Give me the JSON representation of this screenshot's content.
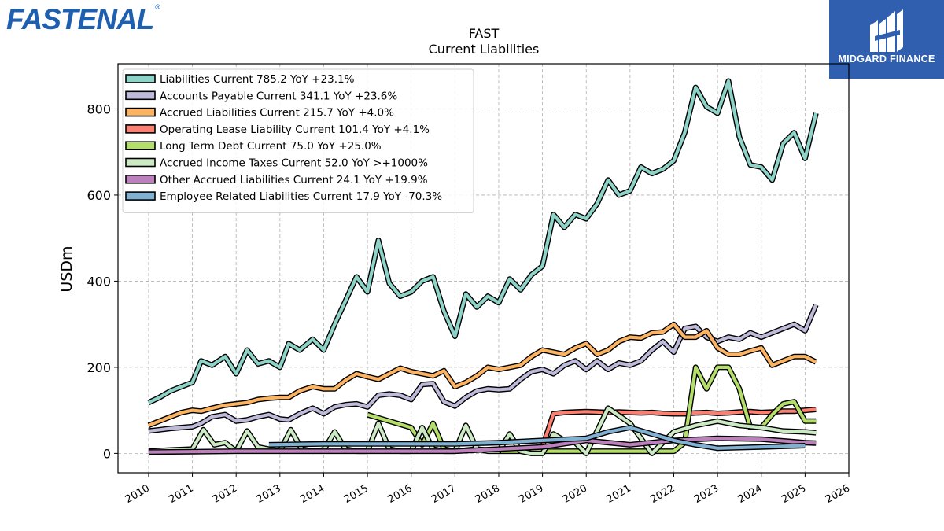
{
  "brand": {
    "name": "FASTENAL",
    "registered": "®"
  },
  "partner": {
    "name": "MIDGARD FINANCE"
  },
  "chart_data": {
    "type": "line",
    "title": "FAST",
    "subtitle": "Current  Liabilities",
    "ylabel": "USDm",
    "xlim": [
      2009.3,
      2026.0
    ],
    "ylim": [
      -45,
      905
    ],
    "yticks": [
      0,
      200,
      400,
      600,
      800
    ],
    "xticks": [
      "2010",
      "2011",
      "2012",
      "2013",
      "2014",
      "2015",
      "2016",
      "2017",
      "2018",
      "2019",
      "2020",
      "2021",
      "2022",
      "2023",
      "2024",
      "2025",
      "2026"
    ],
    "grid": true,
    "legend_position": "top-left",
    "series": [
      {
        "name": "Liabilities Current  785.2 YoY +23.1%",
        "color": "#8dd3c7",
        "x": [
          2010.0,
          2010.25,
          2010.5,
          2010.75,
          2011.0,
          2011.2,
          2011.45,
          2011.75,
          2012.0,
          2012.25,
          2012.5,
          2012.75,
          2013.0,
          2013.2,
          2013.45,
          2013.75,
          2014.0,
          2014.25,
          2014.5,
          2014.75,
          2015.0,
          2015.25,
          2015.5,
          2015.75,
          2016.0,
          2016.25,
          2016.5,
          2016.75,
          2017.0,
          2017.25,
          2017.5,
          2017.75,
          2018.0,
          2018.25,
          2018.5,
          2018.75,
          2019.0,
          2019.25,
          2019.5,
          2019.75,
          2020.0,
          2020.25,
          2020.5,
          2020.75,
          2021.0,
          2021.25,
          2021.5,
          2021.75,
          2022.0,
          2022.25,
          2022.5,
          2022.75,
          2023.0,
          2023.25,
          2023.5,
          2023.75,
          2024.0,
          2024.25,
          2024.5,
          2024.75,
          2025.0,
          2025.25
        ],
        "y": [
          118,
          130,
          145,
          155,
          165,
          215,
          205,
          225,
          185,
          240,
          208,
          215,
          200,
          255,
          240,
          265,
          240,
          300,
          355,
          410,
          375,
          495,
          395,
          365,
          375,
          400,
          410,
          330,
          272,
          370,
          340,
          365,
          350,
          405,
          380,
          415,
          435,
          555,
          525,
          555,
          545,
          580,
          635,
          600,
          610,
          665,
          650,
          660,
          680,
          745,
          850,
          805,
          790,
          865,
          735,
          670,
          665,
          635,
          720,
          745,
          685,
          790
        ]
      },
      {
        "name": "Accounts Payable Current  341.1 YoY +23.6%",
        "color": "#bebada",
        "x": [
          2010.0,
          2010.25,
          2010.5,
          2010.75,
          2011.0,
          2011.2,
          2011.45,
          2011.75,
          2012.0,
          2012.25,
          2012.5,
          2012.75,
          2013.0,
          2013.2,
          2013.45,
          2013.75,
          2014.0,
          2014.25,
          2014.5,
          2014.75,
          2015.0,
          2015.25,
          2015.5,
          2015.75,
          2016.0,
          2016.25,
          2016.5,
          2016.75,
          2017.0,
          2017.25,
          2017.5,
          2017.75,
          2018.0,
          2018.25,
          2018.5,
          2018.75,
          2019.0,
          2019.25,
          2019.5,
          2019.75,
          2020.0,
          2020.25,
          2020.5,
          2020.75,
          2021.0,
          2021.25,
          2021.5,
          2021.75,
          2022.0,
          2022.25,
          2022.5,
          2022.75,
          2023.0,
          2023.25,
          2023.5,
          2023.75,
          2024.0,
          2024.25,
          2024.5,
          2024.75,
          2025.0,
          2025.25
        ],
        "y": [
          52,
          55,
          58,
          60,
          62,
          70,
          85,
          90,
          75,
          78,
          85,
          90,
          80,
          78,
          92,
          105,
          92,
          108,
          113,
          115,
          108,
          135,
          138,
          135,
          125,
          160,
          162,
          120,
          110,
          130,
          145,
          150,
          148,
          150,
          172,
          190,
          195,
          185,
          205,
          215,
          195,
          215,
          195,
          210,
          205,
          215,
          240,
          260,
          235,
          290,
          295,
          270,
          260,
          270,
          265,
          280,
          270,
          280,
          290,
          300,
          285,
          345
        ]
      },
      {
        "name": "Accrued Liabilities Current  215.7 YoY +4.0%",
        "color": "#fdb462",
        "x": [
          2010.0,
          2010.25,
          2010.5,
          2010.75,
          2011.0,
          2011.2,
          2011.45,
          2011.75,
          2012.0,
          2012.25,
          2012.5,
          2012.75,
          2013.0,
          2013.2,
          2013.45,
          2013.75,
          2014.0,
          2014.25,
          2014.5,
          2014.75,
          2015.0,
          2015.25,
          2015.5,
          2015.75,
          2016.0,
          2016.25,
          2016.5,
          2016.75,
          2017.0,
          2017.25,
          2017.5,
          2017.75,
          2018.0,
          2018.25,
          2018.5,
          2018.75,
          2019.0,
          2019.25,
          2019.5,
          2019.75,
          2020.0,
          2020.25,
          2020.5,
          2020.75,
          2021.0,
          2021.25,
          2021.5,
          2021.75,
          2022.0,
          2022.25,
          2022.5,
          2022.75,
          2023.0,
          2023.25,
          2023.5,
          2023.75,
          2024.0,
          2024.25,
          2024.5,
          2024.75,
          2025.0,
          2025.25
        ],
        "y": [
          65,
          75,
          85,
          95,
          100,
          98,
          105,
          112,
          115,
          118,
          125,
          128,
          130,
          130,
          145,
          155,
          150,
          150,
          170,
          185,
          178,
          172,
          185,
          198,
          190,
          185,
          180,
          192,
          155,
          165,
          180,
          200,
          195,
          200,
          205,
          225,
          240,
          235,
          230,
          245,
          255,
          230,
          240,
          260,
          270,
          268,
          280,
          282,
          300,
          270,
          270,
          285,
          245,
          230,
          230,
          238,
          245,
          205,
          215,
          225,
          225,
          212
        ]
      },
      {
        "name": "Operating Lease Liability Current  101.4 YoY +4.1%",
        "color": "#fb8072",
        "x": [
          2019.0,
          2019.25,
          2019.5,
          2019.75,
          2020.0,
          2020.25,
          2020.5,
          2020.75,
          2021.0,
          2021.25,
          2021.5,
          2021.75,
          2022.0,
          2022.25,
          2022.5,
          2022.75,
          2023.0,
          2023.25,
          2023.5,
          2023.75,
          2024.0,
          2024.25,
          2024.5,
          2024.75,
          2025.0,
          2025.25
        ],
        "y": [
          15,
          92,
          95,
          96,
          97,
          96,
          95,
          96,
          95,
          94,
          95,
          93,
          92,
          92,
          94,
          95,
          93,
          94,
          96,
          97,
          95,
          96,
          98,
          98,
          100,
          102
        ]
      },
      {
        "name": "Long Term Debt Current  75.0 YoY +25.0%",
        "color": "#b3de69",
        "x": [
          2015.0,
          2015.5,
          2016.0,
          2016.25,
          2016.5,
          2016.75,
          2017.0,
          2017.5,
          2018.0,
          2018.5,
          2019.0,
          2019.5,
          2020.0,
          2020.5,
          2021.0,
          2021.5,
          2022.0,
          2022.25,
          2022.5,
          2022.75,
          2023.0,
          2023.25,
          2023.5,
          2023.75,
          2024.0,
          2024.25,
          2024.5,
          2024.75,
          2025.0,
          2025.25
        ],
        "y": [
          90,
          75,
          60,
          20,
          70,
          10,
          5,
          10,
          5,
          5,
          5,
          5,
          5,
          5,
          5,
          5,
          5,
          25,
          200,
          150,
          200,
          200,
          150,
          60,
          60,
          90,
          115,
          120,
          75,
          75
        ]
      },
      {
        "name": "Accrued Income Taxes Current  52.0 YoY >+1000%",
        "color": "#ccebc5",
        "x": [
          2010.0,
          2010.5,
          2011.0,
          2011.25,
          2011.5,
          2011.75,
          2012.0,
          2012.25,
          2012.5,
          2012.75,
          2013.0,
          2013.25,
          2013.5,
          2013.75,
          2014.0,
          2014.25,
          2014.5,
          2014.75,
          2015.0,
          2015.25,
          2015.5,
          2015.75,
          2016.0,
          2016.25,
          2016.5,
          2016.75,
          2017.0,
          2017.25,
          2017.5,
          2017.75,
          2018.0,
          2018.25,
          2018.5,
          2018.75,
          2019.0,
          2019.25,
          2019.5,
          2019.75,
          2020.0,
          2020.5,
          2021.0,
          2021.5,
          2022.0,
          2022.5,
          2023.0,
          2023.5,
          2024.0,
          2024.5,
          2025.0,
          2025.25
        ],
        "y": [
          5,
          8,
          10,
          55,
          20,
          25,
          5,
          52,
          15,
          10,
          5,
          55,
          10,
          5,
          8,
          50,
          10,
          5,
          5,
          70,
          10,
          5,
          5,
          60,
          10,
          5,
          5,
          65,
          10,
          5,
          5,
          45,
          5,
          0,
          0,
          45,
          30,
          25,
          0,
          105,
          70,
          0,
          50,
          65,
          75,
          65,
          60,
          52,
          50,
          48
        ]
      },
      {
        "name": "Other Accrued Liabilities Current  24.1 YoY +19.9%",
        "color": "#bc80bd",
        "x": [
          2010.0,
          2011.0,
          2012.0,
          2013.0,
          2014.0,
          2015.0,
          2016.0,
          2017.0,
          2018.0,
          2019.0,
          2020.0,
          2021.0,
          2022.0,
          2023.0,
          2024.0,
          2025.0,
          2025.25
        ],
        "y": [
          3,
          4,
          5,
          5,
          5,
          5,
          5,
          5,
          10,
          15,
          30,
          20,
          30,
          35,
          33,
          25,
          24
        ]
      },
      {
        "name": "Employee Related Liabilities Current  17.9 YoY -70.3%",
        "color": "#80b1d3",
        "x": [
          2012.75,
          2014.0,
          2015.0,
          2016.0,
          2017.0,
          2018.0,
          2019.0,
          2020.0,
          2020.5,
          2021.0,
          2021.5,
          2022.0,
          2022.5,
          2023.0,
          2024.0,
          2025.0
        ],
        "y": [
          20,
          22,
          22,
          22,
          22,
          25,
          30,
          35,
          50,
          60,
          45,
          30,
          20,
          12,
          15,
          18
        ]
      }
    ]
  }
}
